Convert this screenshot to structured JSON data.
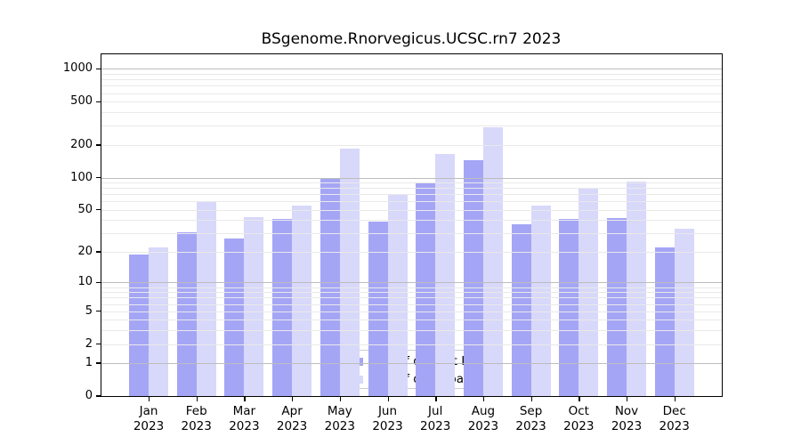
{
  "chart_data": {
    "type": "bar",
    "title": "BSgenome.Rnorvegicus.UCSC.rn7 2023",
    "categories": [
      "Jan",
      "Feb",
      "Mar",
      "Apr",
      "May",
      "Jun",
      "Jul",
      "Aug",
      "Sep",
      "Oct",
      "Nov",
      "Dec"
    ],
    "year_label": "2023",
    "series": [
      {
        "name": "Nb of distinct IPs",
        "color": "#a5a5f6",
        "values": [
          19,
          31,
          27,
          41,
          100,
          39,
          90,
          145,
          37,
          41,
          42,
          22
        ]
      },
      {
        "name": "Nb of downloads",
        "color": "#d8d8fa",
        "values": [
          22,
          60,
          43,
          55,
          185,
          71,
          165,
          290,
          55,
          80,
          92,
          33
        ]
      }
    ],
    "yscale": "log1p",
    "yticks": [
      0,
      1,
      2,
      5,
      10,
      20,
      50,
      100,
      200,
      500,
      1000
    ],
    "ylim": [
      0,
      1000
    ],
    "grid": true,
    "grid_minor_values": [
      2,
      3,
      4,
      5,
      6,
      7,
      8,
      9,
      20,
      30,
      40,
      50,
      60,
      70,
      80,
      90,
      200,
      300,
      400,
      500,
      600,
      700,
      800,
      900
    ],
    "grid_major_values": [
      1,
      10,
      100,
      1000
    ],
    "legend_position": "lower-center-inside"
  },
  "colors": {
    "background": "#ffffff",
    "bar_distinct_ips": "#a5a5f6",
    "bar_downloads": "#d8d8fa",
    "grid_major": "#bdbdbd",
    "grid_minor": "#e9e9e9",
    "axis": "#000000",
    "legend_border": "#cccccc",
    "text": "#000000"
  }
}
